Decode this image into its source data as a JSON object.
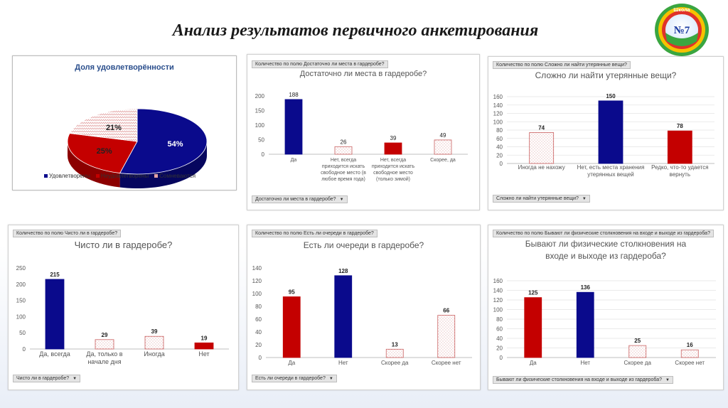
{
  "page_title": "Анализ результатов первичного анкетирования",
  "logo": {
    "ring_text": "Шкoла",
    "number": "№7"
  },
  "colors": {
    "blue": "#0a0a8c",
    "red": "#c40000",
    "pattern": "#e3a3a3"
  },
  "chart_data": [
    {
      "type": "pie",
      "title": "Доля удовлетворённости",
      "categories": [
        "Удовлетворены",
        "Неудовлетворены",
        "Сомневаются"
      ],
      "values": [
        54,
        25,
        21
      ],
      "value_labels": [
        "54%",
        "25%",
        "21%"
      ],
      "legend_position": "bottom"
    },
    {
      "type": "bar",
      "header": "Количество по полю Достаточно ли места в гардеробе?",
      "title": "Достаточно ли места в гардеробе?",
      "categories": [
        "Да",
        "Нет, всегда приходится искать свободное место (в любое время года)",
        "Нет, всегда приходится искать свободное место (только зимой)",
        "Скорее, да"
      ],
      "values": [
        188,
        26,
        39,
        49
      ],
      "styles": [
        "blue",
        "pattern",
        "red",
        "pattern"
      ],
      "ylim": [
        0,
        200
      ],
      "yticks": [
        0,
        50,
        100,
        150,
        200
      ],
      "filter_label": "Достаточно ли места в гардеробе?"
    },
    {
      "type": "bar",
      "header": "Количество по полю Сложно ли найти утерянные вещи?",
      "title": "Сложно ли найти утерянные вещи?",
      "categories": [
        "Иногда не нахожу",
        "Нет, есть места хранения утерянных вещей",
        "Редко, что-то удается вернуть"
      ],
      "values": [
        74,
        150,
        78
      ],
      "styles": [
        "pattern",
        "blue",
        "red"
      ],
      "ylim": [
        0,
        160
      ],
      "yticks": [
        0,
        20,
        40,
        60,
        80,
        100,
        120,
        140,
        160
      ],
      "filter_label": "Сложно ли найти утерянные вещи?"
    },
    {
      "type": "bar",
      "header": "Количество по полю Чисто ли в гардеробе?",
      "title": "Чисто ли в гардеробе?",
      "categories": [
        "Да, всегда",
        "Да, только в начале дня",
        "Иногда",
        "Нет"
      ],
      "values": [
        215,
        29,
        39,
        19
      ],
      "styles": [
        "blue",
        "pattern",
        "pattern",
        "red"
      ],
      "ylim": [
        0,
        250
      ],
      "yticks": [
        0,
        50,
        100,
        150,
        200,
        250
      ],
      "filter_label": "Чисто ли в гардеробе?"
    },
    {
      "type": "bar",
      "header": "Количество по полю Есть ли очереди в гардеробе?",
      "title": "Есть ли очереди в гардеробе?",
      "categories": [
        "Да",
        "Нет",
        "Скорее да",
        "Скорее нет"
      ],
      "values": [
        95,
        128,
        13,
        66
      ],
      "styles": [
        "red",
        "blue",
        "pattern",
        "pattern"
      ],
      "ylim": [
        0,
        140
      ],
      "yticks": [
        0,
        20,
        40,
        60,
        80,
        100,
        120,
        140
      ],
      "filter_label": "Есть ли очереди в гардеробе?"
    },
    {
      "type": "bar",
      "header": "Количество по полю Бывают ли физические столкновения на входе и выходе  из гардероба?",
      "title": "Бывают ли физические столкновения на входе и выходе  из гардероба?",
      "title_lines": [
        "Бывают ли физические столкновения на",
        "входе и выходе  из гардероба?"
      ],
      "categories": [
        "Да",
        "Нет",
        "Скорее да",
        "Скорее нет"
      ],
      "values": [
        125,
        136,
        25,
        16
      ],
      "styles": [
        "red",
        "blue",
        "pattern",
        "pattern"
      ],
      "ylim": [
        0,
        160
      ],
      "yticks": [
        0,
        20,
        40,
        60,
        80,
        100,
        120,
        140,
        160
      ],
      "filter_label": "Бывают  ли физические столкновения на входе и выходе  из гардероба?"
    }
  ]
}
